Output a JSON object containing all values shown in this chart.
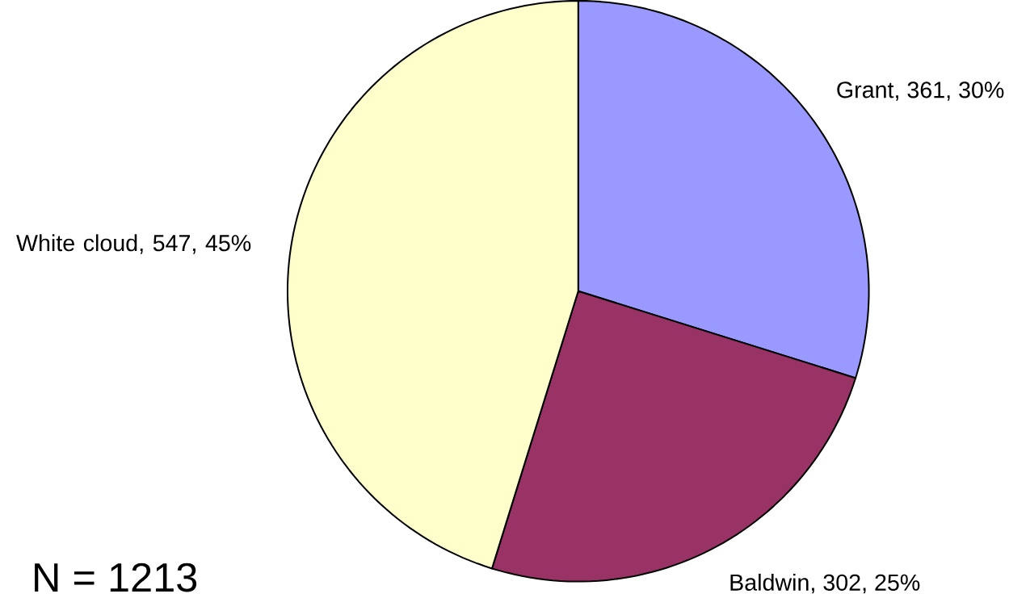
{
  "chart_data": {
    "type": "pie",
    "categories": [
      "Grant",
      "Baldwin",
      "White cloud"
    ],
    "values": [
      361,
      302,
      547
    ],
    "value_labels": [
      ", 361, 30%",
      ", 302, 25%",
      ", 547, 45%"
    ],
    "colors": [
      "#9999ff",
      "#993366",
      "#ffffcc"
    ],
    "annotations": [
      "N = 1213"
    ]
  }
}
